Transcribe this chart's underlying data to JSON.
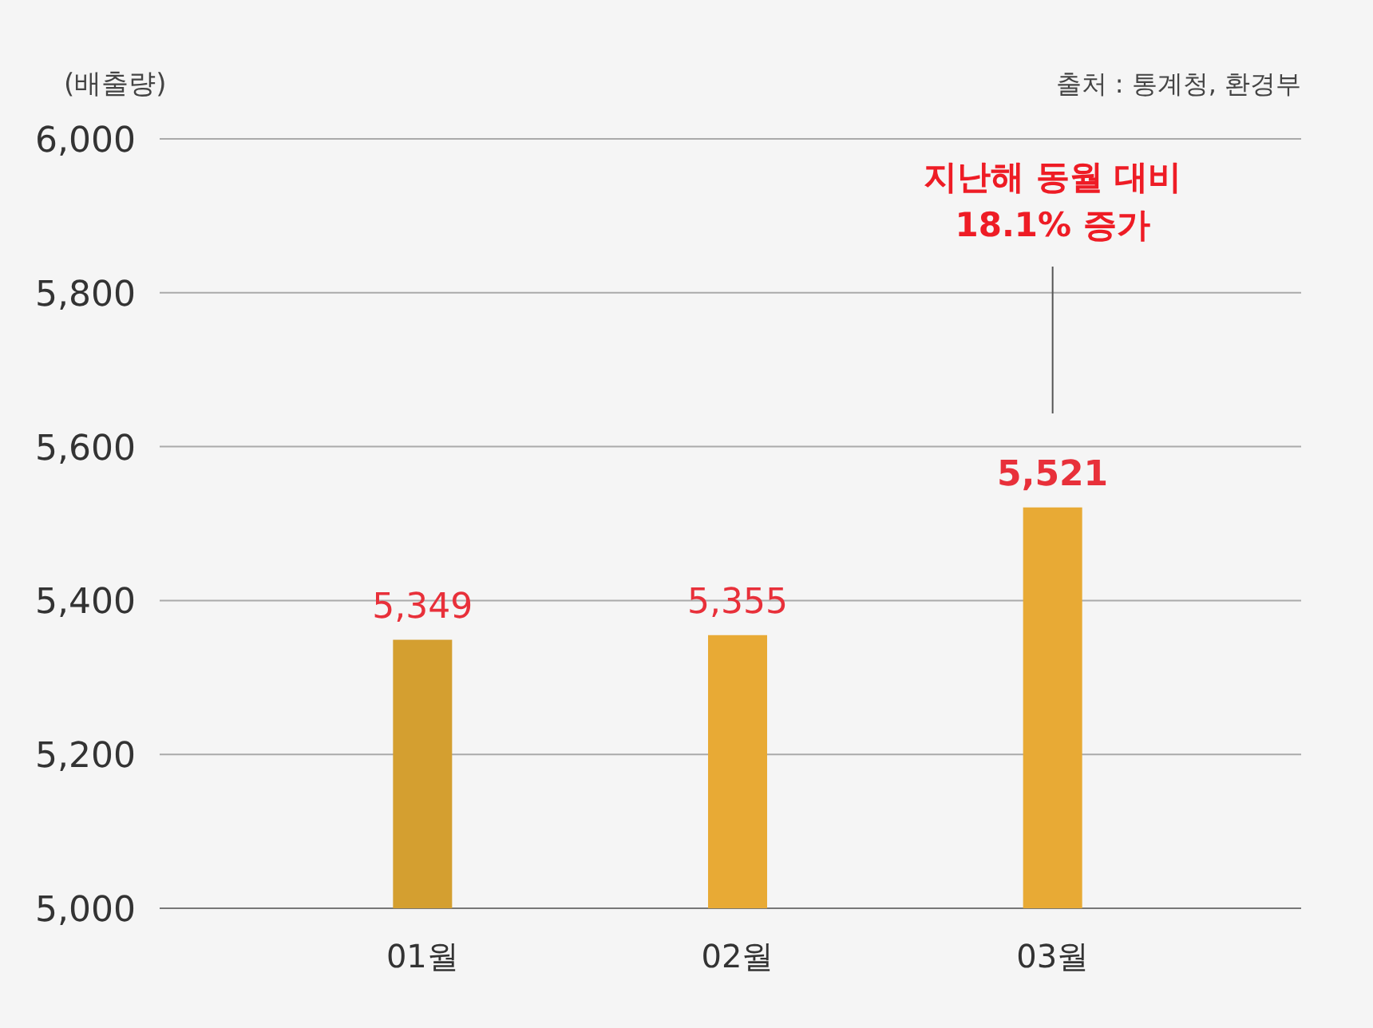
{
  "chart_data": {
    "type": "bar",
    "ylabel": "(배출량)",
    "categories": [
      "01월",
      "02월",
      "03월"
    ],
    "values": [
      5349,
      5355,
      5521
    ],
    "colors": [
      "#d49f30",
      "#e8aa35",
      "#e8aa35"
    ],
    "value_labels": [
      "5,349",
      "5,355",
      "**5,521**"
    ],
    "ylim": [
      5000,
      6000
    ],
    "yticks": [
      {
        "value": 5000,
        "label": "5,000"
      },
      {
        "value": 5200,
        "label": "5,200"
      },
      {
        "value": 5400,
        "label": "5,400"
      },
      {
        "value": 5600,
        "label": "5,600"
      },
      {
        "value": 5800,
        "label": "5,800"
      },
      {
        "value": 6000,
        "label": "6,000"
      }
    ],
    "grid": "y",
    "annotations": [
      "지난해 동월 대비 18.1% 증가",
      "출처 : 통계청, 환경부"
    ]
  }
}
